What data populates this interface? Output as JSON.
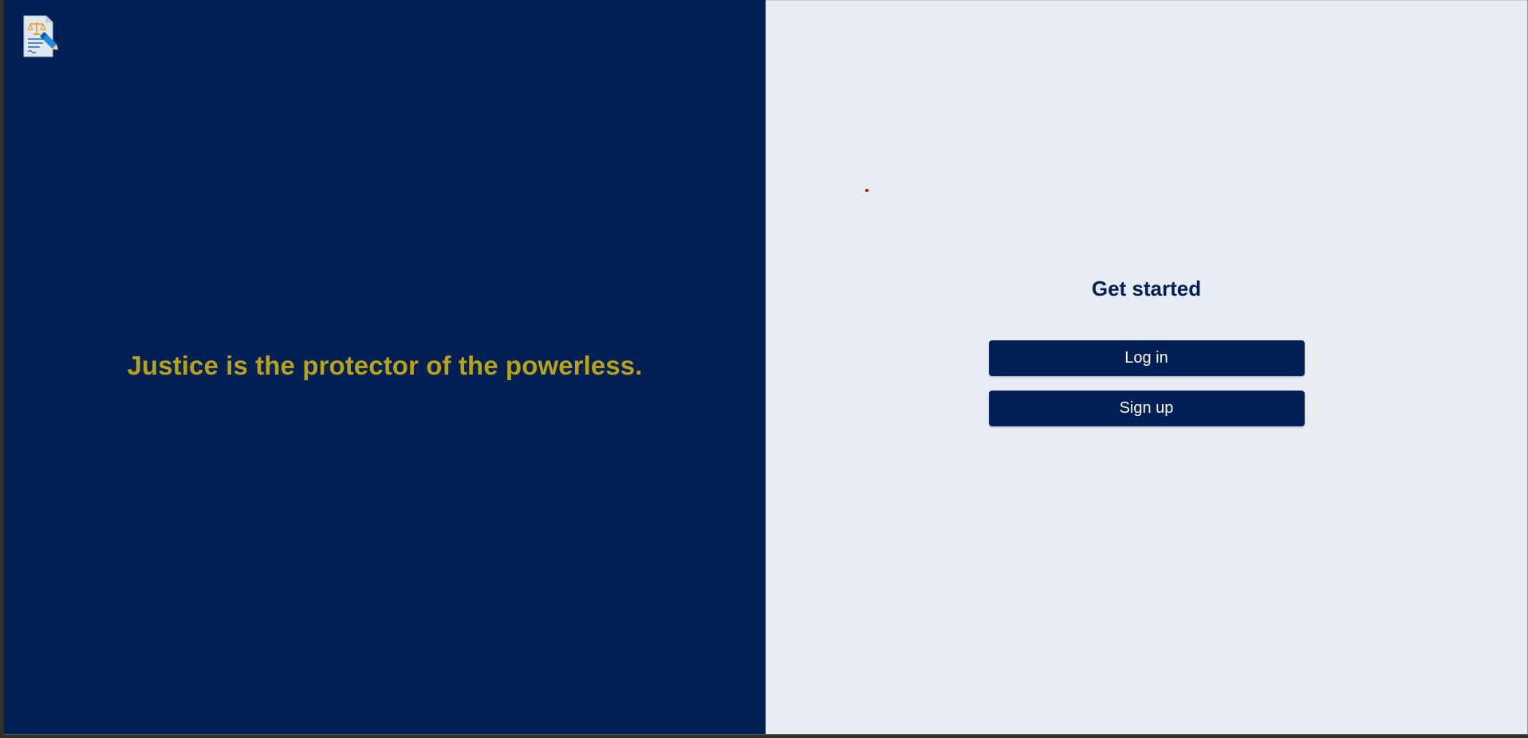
{
  "brand": {
    "logo_icon": "legal-document-icon",
    "colors": {
      "navy": "#001f54",
      "gold": "#b8a317",
      "light_bg": "#e8edf5"
    }
  },
  "hero": {
    "quote": "Justice is the protector of the powerless."
  },
  "auth": {
    "title": "Get started",
    "login_label": "Log in",
    "signup_label": "Sign up"
  }
}
